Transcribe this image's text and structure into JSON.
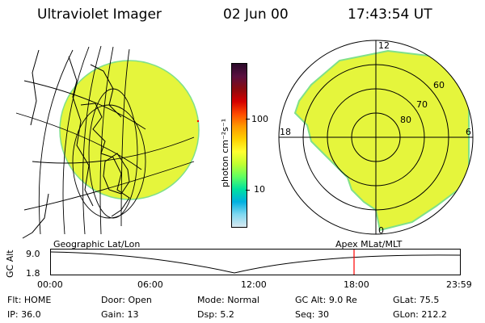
{
  "header": {
    "instrument": "Ultraviolet Imager",
    "date": "02 Jun 00",
    "time": "17:43:54 UT"
  },
  "colorbar": {
    "unit_label": "photon cm⁻²s⁻¹",
    "ticks": [
      "100",
      "10"
    ],
    "colors_top_to_bottom": [
      "#2a0a2a",
      "#5a1040",
      "#8a0b10",
      "#d40000",
      "#ff4a00",
      "#ff9a00",
      "#ffd000",
      "#ffff30",
      "#c0ff30",
      "#60ff60",
      "#00e0a0",
      "#00b0e0",
      "#7fd8f0",
      "#d8e8f0"
    ]
  },
  "colors": {
    "image_fill": "#e5f53c",
    "image_edge": "#7fe08a",
    "marker": "#ff0000"
  },
  "polar": {
    "mlt_labels": {
      "top": "12",
      "left": "18",
      "right": "6",
      "bottom": "0"
    },
    "mlat_labels": [
      "60",
      "70",
      "80"
    ]
  },
  "timeline": {
    "left_title": "Geographic Lat/Lon",
    "right_title": "Apex MLat/MLT",
    "yaxis_label": "GC Alt",
    "y_ticks": [
      "9.0",
      "1.8"
    ],
    "x_ticks": [
      "00:00",
      "06:00",
      "12:00",
      "18:00",
      "23:59"
    ],
    "marker_time": "17:43"
  },
  "info_rows": [
    [
      {
        "label": "Flt:",
        "value": "HOME"
      },
      {
        "label": "Door:",
        "value": "Open"
      },
      {
        "label": "Mode:",
        "value": "Normal"
      },
      {
        "label": "GC Alt:",
        "value": "9.0 Re"
      },
      {
        "label": "GLat:",
        "value": "75.5"
      }
    ],
    [
      {
        "label": "IP:",
        "value": "36.0"
      },
      {
        "label": "Gain:",
        "value": "13"
      },
      {
        "label": "Dsp:",
        "value": "5.2"
      },
      {
        "label": "Seq:",
        "value": "30"
      },
      {
        "label": "GLon:",
        "value": "212.2"
      }
    ]
  ]
}
